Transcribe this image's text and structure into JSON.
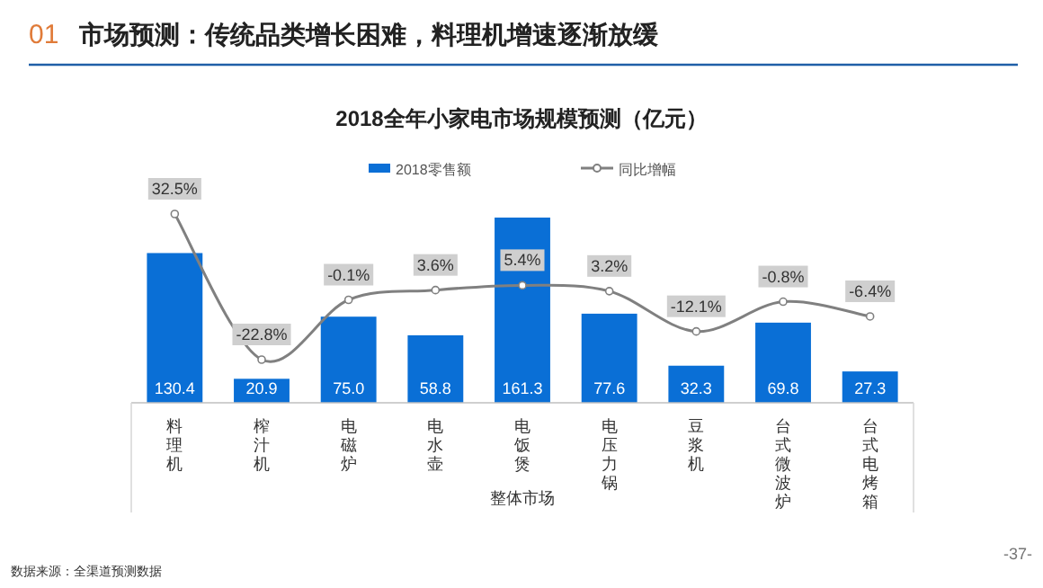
{
  "chart_data": {
    "type": "bar",
    "title": "市场预测：传统品类增长困难，料理机增速逐渐放缓",
    "subtitle": "2018全年小家电市场规模预测（亿元）",
    "xlabel": "整体市场",
    "categories": [
      "料理机",
      "榨汁机",
      "电磁炉",
      "电水壶",
      "电饭煲",
      "电压力锅",
      "豆浆机",
      "台式微波炉",
      "台式电烤箱"
    ],
    "series": [
      {
        "name": "2018零售额",
        "color": "#0a6fd6",
        "value_labels": [
          "130.4",
          "20.9",
          "75.0",
          "58.8",
          "161.3",
          "77.6",
          "32.3",
          "69.8",
          "27.3"
        ],
        "values": [
          130.4,
          20.9,
          75.0,
          58.8,
          161.3,
          77.6,
          32.3,
          69.8,
          27.3
        ]
      },
      {
        "name": "同比增幅",
        "type": "line",
        "axis": "y2",
        "color": "#808080",
        "marker": "circle",
        "value_labels": [
          "32.5%",
          "-22.8%",
          "-0.1%",
          "3.6%",
          "5.4%",
          "3.2%",
          "-12.1%",
          "-0.8%",
          "-6.4%"
        ],
        "values": [
          32.5,
          -22.8,
          -0.1,
          3.6,
          5.4,
          3.2,
          -12.1,
          -0.8,
          -6.4
        ]
      }
    ],
    "tick_labels": "x",
    "data_labels": true,
    "legend": "top",
    "annotations": [
      "01",
      "数据来源：全渠道预测数据",
      "-37-"
    ]
  }
}
